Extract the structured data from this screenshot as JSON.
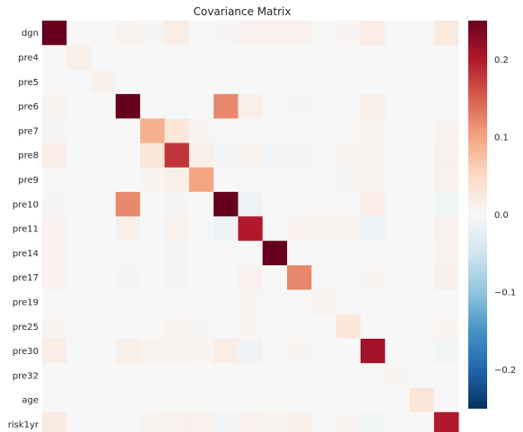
{
  "chart_data": {
    "type": "heatmap",
    "title": "Covariance Matrix",
    "labels": [
      "dgn",
      "pre4",
      "pre5",
      "pre6",
      "pre7",
      "pre8",
      "pre9",
      "pre10",
      "pre11",
      "pre14",
      "pre17",
      "pre19",
      "pre25",
      "pre30",
      "pre32",
      "age",
      "risk1yr"
    ],
    "colorbar": {
      "min": -0.25,
      "max": 0.25,
      "ticks": [
        -0.2,
        -0.1,
        0.0,
        0.1,
        0.2
      ],
      "tick_labels": [
        "−0.2",
        "−0.1",
        "0.0",
        "0.1",
        "0.2"
      ],
      "colormap": "RdBu_r"
    },
    "values": [
      [
        0.25,
        0.0,
        0.002,
        0.008,
        0.003,
        0.018,
        0.0,
        0.003,
        0.01,
        0.01,
        0.01,
        0.0,
        0.006,
        0.02,
        0.0,
        0.0,
        0.025
      ],
      [
        0.0,
        0.015,
        0.0,
        0.0,
        0.0,
        0.0,
        0.0,
        0.0,
        0.0,
        0.0,
        0.0,
        0.0,
        0.0,
        0.0,
        0.0,
        0.0,
        0.0
      ],
      [
        0.002,
        0.0,
        0.012,
        0.0,
        0.0,
        0.0,
        0.0,
        0.0,
        0.0,
        0.0,
        0.0,
        0.0,
        0.0,
        0.0,
        0.0,
        0.0,
        0.0
      ],
      [
        0.008,
        0.0,
        0.0,
        0.25,
        0.0,
        -0.003,
        0.0,
        0.12,
        0.015,
        0.0,
        -0.005,
        0.0,
        0.0,
        0.015,
        0.0,
        0.0,
        -0.002
      ],
      [
        0.003,
        0.0,
        0.0,
        0.0,
        0.09,
        0.03,
        0.006,
        0.0,
        -0.003,
        0.0,
        0.0,
        0.0,
        0.0,
        0.008,
        0.0,
        0.0,
        0.008
      ],
      [
        0.018,
        0.0,
        0.0,
        -0.003,
        0.03,
        0.18,
        0.015,
        -0.005,
        0.008,
        -0.005,
        0.004,
        0.0,
        0.005,
        0.008,
        0.0,
        0.0,
        0.01
      ],
      [
        0.0,
        0.0,
        0.0,
        0.0,
        0.006,
        0.015,
        0.1,
        0.0,
        -0.003,
        0.0,
        0.0,
        0.0,
        0.004,
        0.006,
        0.0,
        0.0,
        0.01
      ],
      [
        0.003,
        0.0,
        0.0,
        0.12,
        0.0,
        -0.005,
        0.0,
        0.25,
        -0.01,
        0.0,
        0.0,
        0.0,
        0.0,
        0.02,
        0.0,
        0.0,
        -0.006
      ],
      [
        0.01,
        0.0,
        0.0,
        0.015,
        -0.003,
        0.008,
        -0.003,
        -0.01,
        0.2,
        0.0,
        0.01,
        0.005,
        0.005,
        -0.01,
        0.0,
        0.0,
        0.01
      ],
      [
        0.01,
        0.0,
        0.0,
        0.0,
        0.0,
        -0.005,
        0.0,
        0.0,
        0.0,
        0.25,
        0.0,
        0.0,
        0.0,
        0.0,
        0.0,
        0.0,
        0.008
      ],
      [
        0.01,
        0.0,
        0.0,
        -0.005,
        0.0,
        0.004,
        0.0,
        0.0,
        0.01,
        0.0,
        0.12,
        0.0,
        0.0,
        0.005,
        0.0,
        0.0,
        0.012
      ],
      [
        0.0,
        0.0,
        0.0,
        0.0,
        0.0,
        0.0,
        0.0,
        0.0,
        0.005,
        0.0,
        0.0,
        0.008,
        0.0,
        0.0,
        0.0,
        0.0,
        0.0
      ],
      [
        0.006,
        0.0,
        0.0,
        0.0,
        0.0,
        0.005,
        0.004,
        0.0,
        0.005,
        0.0,
        0.0,
        0.0,
        0.03,
        0.0,
        0.0,
        0.0,
        0.005
      ],
      [
        0.02,
        0.0,
        0.0,
        0.015,
        0.008,
        0.008,
        0.006,
        0.02,
        -0.01,
        0.0,
        0.005,
        0.0,
        0.0,
        0.21,
        0.0,
        0.0,
        -0.006
      ],
      [
        0.0,
        0.0,
        0.0,
        0.0,
        0.0,
        0.0,
        0.0,
        0.0,
        0.0,
        0.0,
        0.0,
        0.0,
        0.0,
        0.0,
        0.006,
        0.0,
        0.0
      ],
      [
        0.0,
        0.0,
        0.0,
        0.0,
        0.0,
        0.0,
        0.0,
        0.0,
        0.0,
        0.0,
        0.0,
        0.0,
        0.0,
        0.0,
        0.0,
        0.03,
        0.0
      ],
      [
        0.025,
        0.0,
        0.0,
        -0.002,
        0.008,
        0.01,
        0.01,
        -0.006,
        0.01,
        0.008,
        0.012,
        0.0,
        0.005,
        -0.006,
        0.0,
        0.0,
        0.2
      ]
    ]
  }
}
